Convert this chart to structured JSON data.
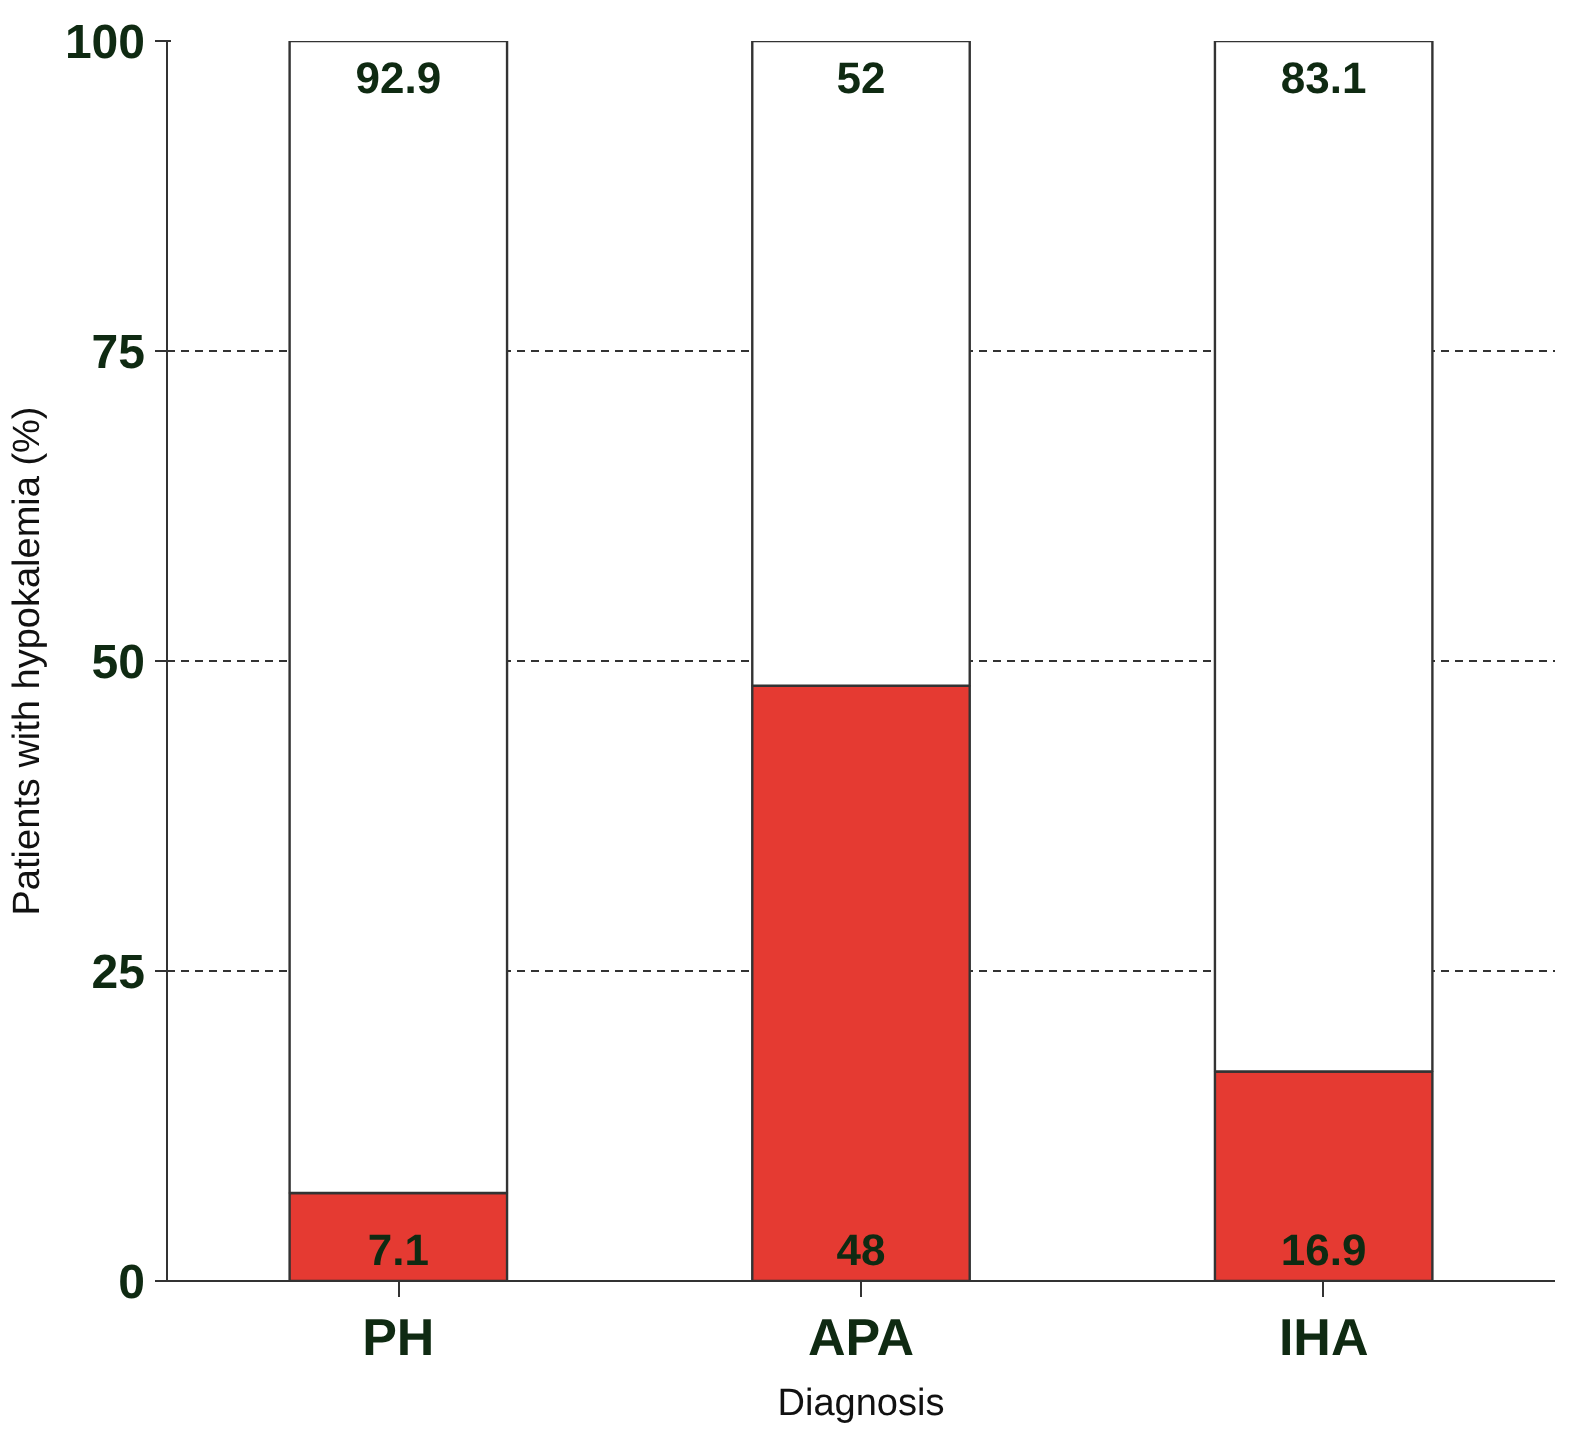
{
  "chart_data": {
    "type": "bar",
    "stacked": true,
    "xlabel": "Diagnosis",
    "ylabel": "Patients with hypokalemia (%)",
    "categories": [
      "PH",
      "APA",
      "IHA"
    ],
    "series": [
      {
        "color": "#e53a32",
        "values": [
          7.1,
          48,
          16.9
        ]
      },
      {
        "color": "#ffffff",
        "values": [
          92.9,
          52,
          83.1
        ]
      }
    ],
    "ylim": [
      0,
      100
    ],
    "yticks": [
      0,
      25,
      50,
      75,
      100
    ],
    "grid": "y",
    "data_labels": true
  }
}
